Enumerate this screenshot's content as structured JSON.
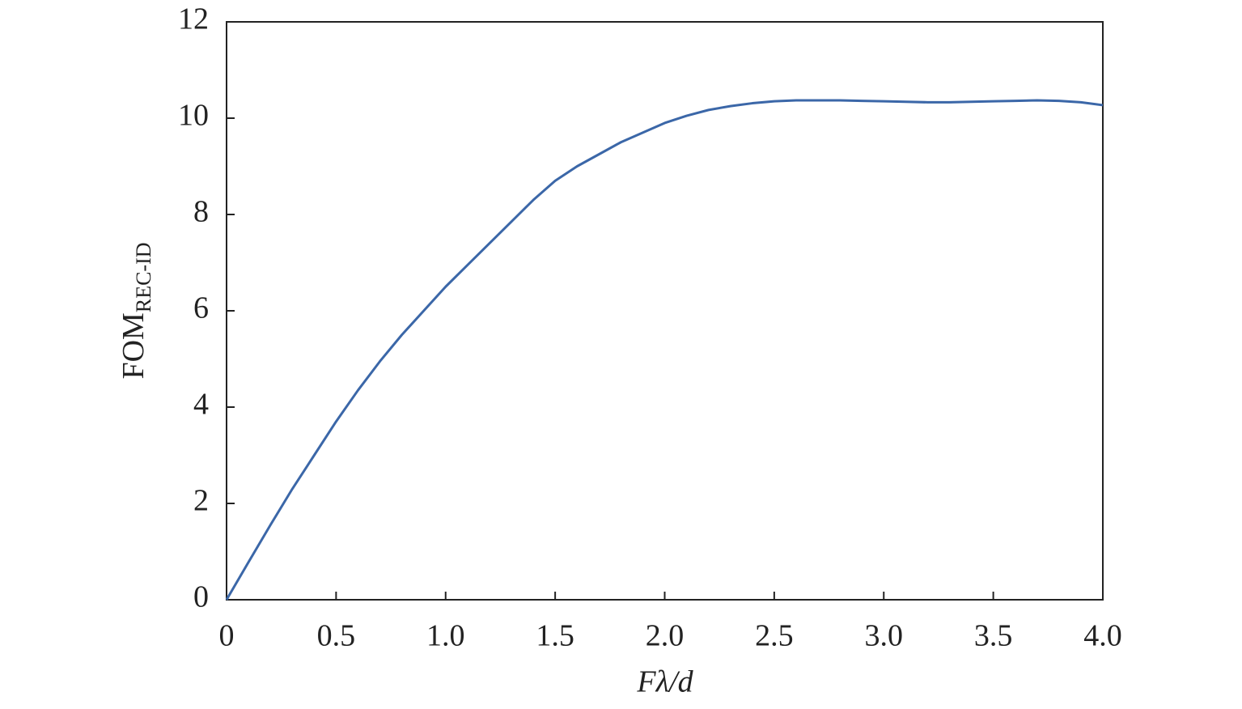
{
  "chart_data": {
    "type": "line",
    "xlabel": "Fλ/d",
    "ylabel": {
      "main": "FOM",
      "sub": "REC-ID"
    },
    "x": [
      0,
      0.1,
      0.2,
      0.3,
      0.4,
      0.5,
      0.6,
      0.7,
      0.8,
      0.9,
      1.0,
      1.1,
      1.2,
      1.3,
      1.4,
      1.5,
      1.6,
      1.7,
      1.8,
      1.9,
      2.0,
      2.1,
      2.2,
      2.3,
      2.4,
      2.5,
      2.6,
      2.7,
      2.8,
      2.9,
      3.0,
      3.1,
      3.2,
      3.3,
      3.4,
      3.5,
      3.6,
      3.7,
      3.8,
      3.9,
      4.0
    ],
    "series": [
      {
        "color": "#3b67a8",
        "values": [
          0,
          0.78,
          1.55,
          2.3,
          3.0,
          3.7,
          4.35,
          4.95,
          5.5,
          6.0,
          6.5,
          6.95,
          7.4,
          7.85,
          8.3,
          8.7,
          9.0,
          9.25,
          9.5,
          9.7,
          9.9,
          10.05,
          10.17,
          10.25,
          10.31,
          10.35,
          10.37,
          10.37,
          10.37,
          10.36,
          10.35,
          10.34,
          10.33,
          10.33,
          10.34,
          10.35,
          10.36,
          10.37,
          10.36,
          10.33,
          10.27
        ]
      }
    ],
    "xlim": [
      0,
      4.0
    ],
    "xticks": [
      0,
      0.5,
      {
        "value": 1,
        "label": "1.0"
      },
      1.5,
      {
        "value": 2,
        "label": "2.0"
      },
      2.5,
      {
        "value": 3,
        "label": "3.0"
      },
      3.5,
      {
        "value": 4,
        "label": "4.0"
      }
    ],
    "ylim": [
      0,
      12
    ],
    "yticks": [
      0,
      2,
      4,
      6,
      8,
      10,
      12
    ],
    "grid": false
  }
}
